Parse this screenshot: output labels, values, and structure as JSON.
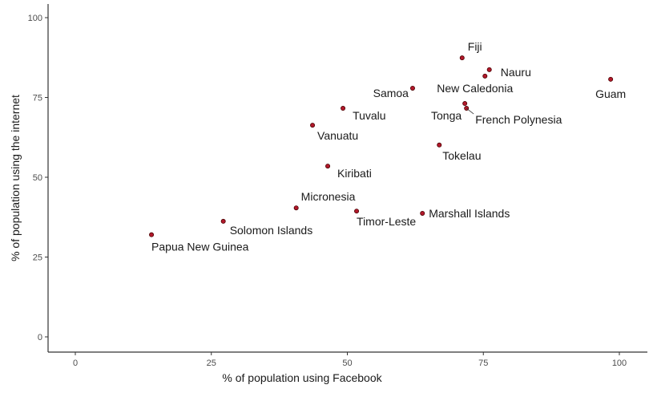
{
  "chart_data": {
    "type": "scatter",
    "title": "",
    "xlabel": "% of population using Facebook",
    "ylabel": "% of population using the internet",
    "xlim": [
      -5,
      105
    ],
    "ylim": [
      -5,
      105
    ],
    "x_ticks": [
      0,
      25,
      50,
      75,
      100
    ],
    "y_ticks": [
      0,
      25,
      50,
      75,
      100
    ],
    "x_tick_labels": [
      "0",
      "25",
      "50",
      "75",
      "100"
    ],
    "y_tick_labels": [
      "0",
      "25",
      "50",
      "75",
      "100"
    ],
    "grid": false,
    "legend": null,
    "point_color": "#b2182b",
    "points": [
      {
        "label": "Papua New Guinea",
        "x": 14.0,
        "y": 32.0
      },
      {
        "label": "Solomon Islands",
        "x": 27.2,
        "y": 36.2
      },
      {
        "label": "Micronesia",
        "x": 40.6,
        "y": 40.4
      },
      {
        "label": "Timor-Leste",
        "x": 51.7,
        "y": 39.4
      },
      {
        "label": "Marshall Islands",
        "x": 63.8,
        "y": 38.7
      },
      {
        "label": "Kiribati",
        "x": 46.4,
        "y": 53.5
      },
      {
        "label": "Vanuatu",
        "x": 43.6,
        "y": 66.3
      },
      {
        "label": "Tuvalu",
        "x": 49.2,
        "y": 71.6
      },
      {
        "label": "Tokelau",
        "x": 66.9,
        "y": 60.1
      },
      {
        "label": "Samoa",
        "x": 62.0,
        "y": 77.9
      },
      {
        "label": "Fiji",
        "x": 71.1,
        "y": 87.4
      },
      {
        "label": "Nauru",
        "x": 76.1,
        "y": 83.7
      },
      {
        "label": "New Caledonia",
        "x": 75.3,
        "y": 81.7
      },
      {
        "label": "Tonga",
        "x": 71.6,
        "y": 73.1
      },
      {
        "label": "French Polynesia",
        "x": 71.9,
        "y": 71.6
      },
      {
        "label": "Guam",
        "x": 98.4,
        "y": 80.7
      }
    ]
  },
  "label_layout": {
    "Papua New Guinea": {
      "dx": 0,
      "dy": 20,
      "anchor": "start"
    },
    "Solomon Islands": {
      "dx": 8,
      "dy": 16,
      "anchor": "start"
    },
    "Micronesia": {
      "dx": 6,
      "dy": -9,
      "anchor": "start"
    },
    "Timor-Leste": {
      "dx": 0,
      "dy": 18,
      "anchor": "start"
    },
    "Marshall Islands": {
      "dx": 8,
      "dy": 5,
      "anchor": "start"
    },
    "Kiribati": {
      "dx": 12,
      "dy": 14,
      "anchor": "start"
    },
    "Vanuatu": {
      "dx": 6,
      "dy": 18,
      "anchor": "start"
    },
    "Tuvalu": {
      "dx": 12,
      "dy": 14,
      "anchor": "start"
    },
    "Tokelau": {
      "dx": 4,
      "dy": 18,
      "anchor": "start"
    },
    "Samoa": {
      "dx": -5,
      "dy": 11,
      "anchor": "end"
    },
    "Fiji": {
      "dx": 7,
      "dy": -9,
      "anchor": "start"
    },
    "Nauru": {
      "dx": 14,
      "dy": 8,
      "anchor": "start"
    },
    "New Caledonia": {
      "dx": -60,
      "dy": 20,
      "anchor": "start"
    },
    "Tonga": {
      "dx": -4,
      "dy": 20,
      "anchor": "end"
    },
    "French Polynesia": {
      "dx": 11,
      "dy": 19,
      "anchor": "start",
      "leader": true
    },
    "Guam": {
      "dx": 0,
      "dy": 23,
      "anchor": "middle"
    }
  }
}
